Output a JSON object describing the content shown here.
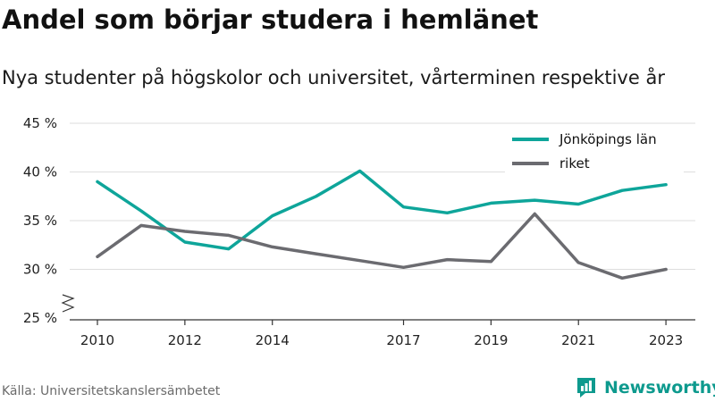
{
  "title": "Andel som börjar studera i hemlänet",
  "subtitle": "Nya studenter på högskolor och universitet, vårterminen respektive år",
  "source": "Källa: Universitetskanslersämbetet",
  "brand": {
    "name": "Newsworthy",
    "icon": "newsworthy-logo-icon",
    "color": "#0e9a8e"
  },
  "chart_data": {
    "type": "line",
    "x": [
      2010,
      2011,
      2012,
      2013,
      2014,
      2015,
      2016,
      2017,
      2018,
      2019,
      2020,
      2021,
      2022,
      2023
    ],
    "x_ticks": [
      2010,
      2012,
      2014,
      2017,
      2019,
      2021,
      2023
    ],
    "y_ticks": [
      25,
      30,
      35,
      40,
      45
    ],
    "y_tick_labels": [
      "25 %",
      "30 %",
      "35 %",
      "40 %",
      "45 %"
    ],
    "ylim": [
      25,
      45
    ],
    "y_axis_break": true,
    "grid": true,
    "legend_position": "top-right",
    "series": [
      {
        "name": "Jönköpings län",
        "color": "#0ea59a",
        "values": [
          39.0,
          36.0,
          32.8,
          32.1,
          35.5,
          37.5,
          40.1,
          36.4,
          35.8,
          36.8,
          37.1,
          36.7,
          38.1,
          38.7
        ]
      },
      {
        "name": "riket",
        "color": "#6b6b70",
        "values": [
          31.3,
          34.5,
          33.9,
          33.5,
          32.3,
          31.6,
          30.9,
          30.2,
          31.0,
          30.8,
          35.7,
          30.7,
          29.1,
          30.0
        ]
      }
    ]
  }
}
